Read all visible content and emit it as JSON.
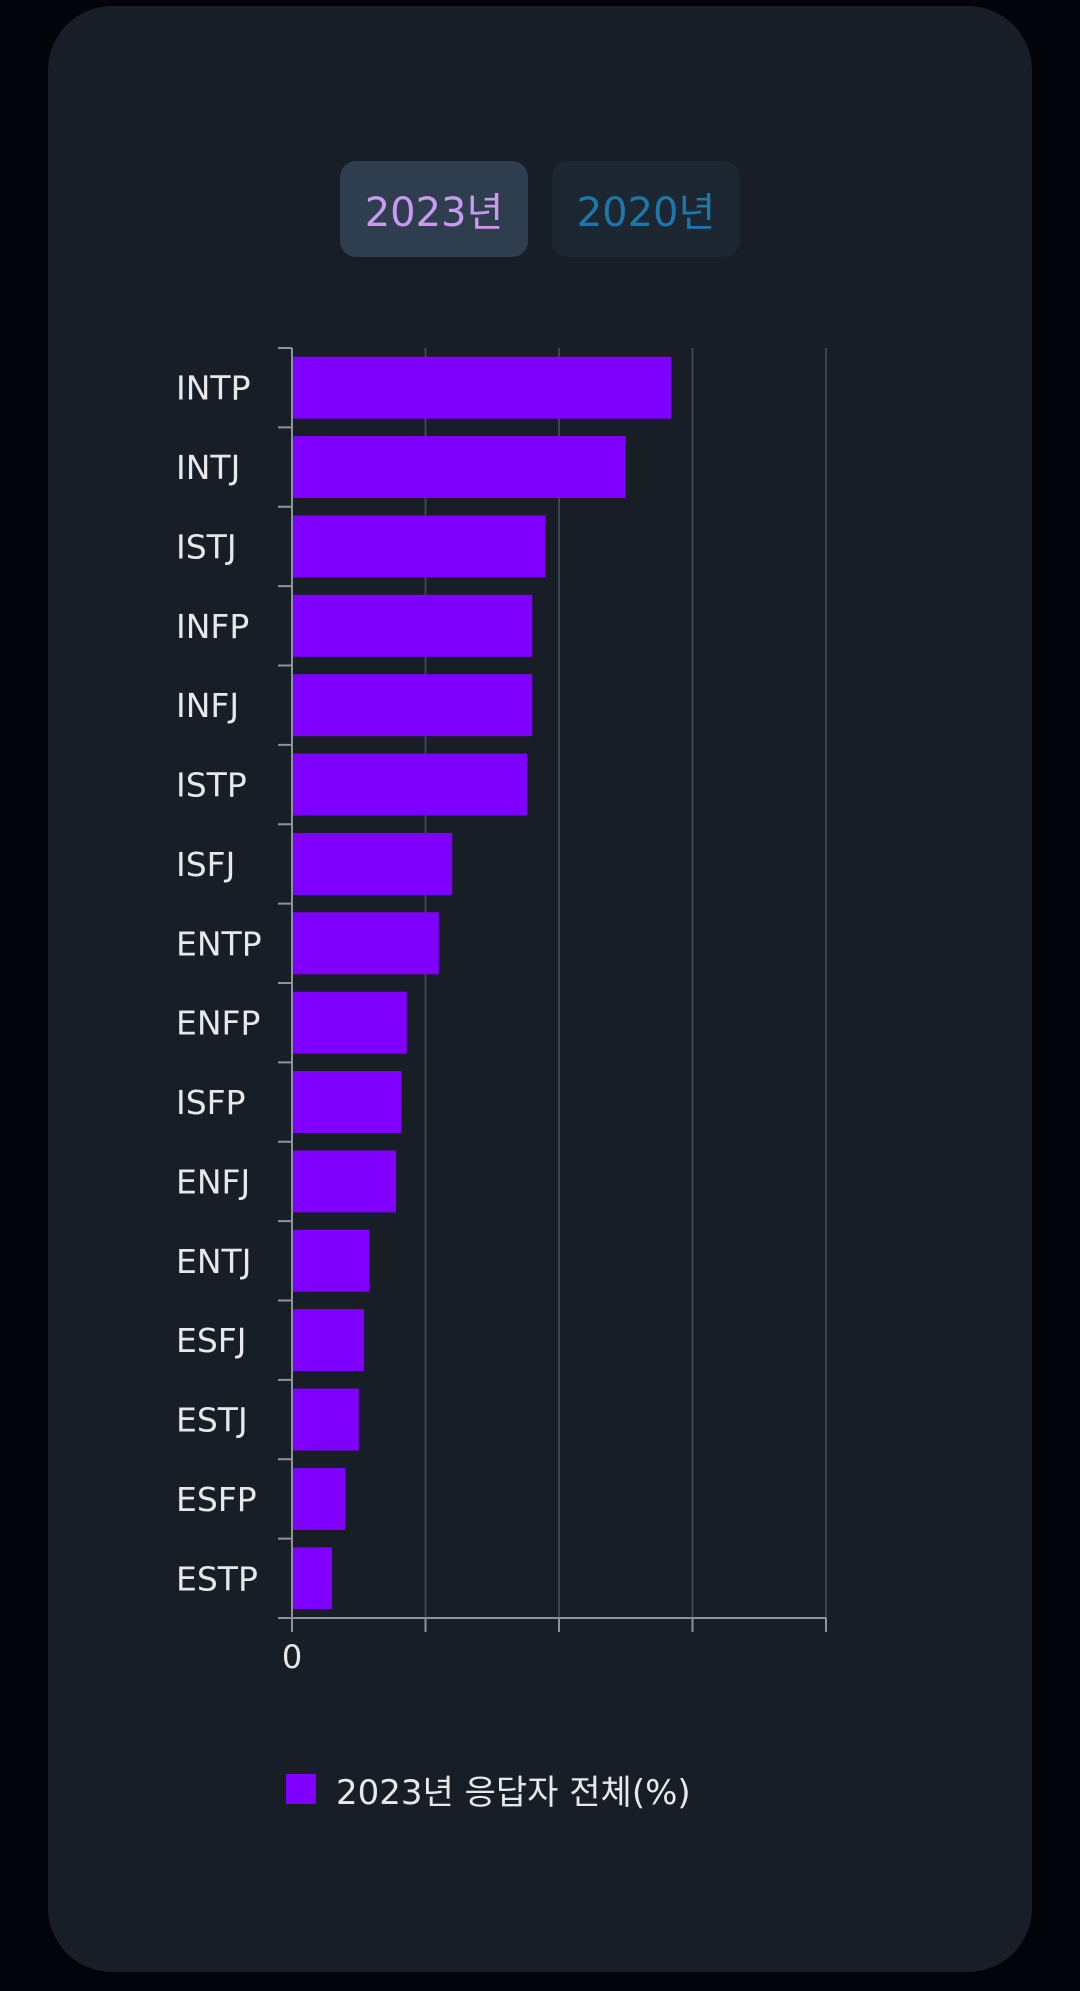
{
  "tabs": [
    {
      "label": "2023년",
      "active": true
    },
    {
      "label": "2020년",
      "active": false
    }
  ],
  "colors": {
    "bar": "#8000ff",
    "grid": "#3b4650",
    "axis": "#8a949c",
    "label": "#e6e8eb"
  },
  "chart_data": {
    "type": "bar",
    "orientation": "horizontal",
    "categories": [
      "INTP",
      "INTJ",
      "ISTJ",
      "INFP",
      "INFJ",
      "ISTP",
      "ISFJ",
      "ENTP",
      "ENFP",
      "ISFP",
      "ENFJ",
      "ENTJ",
      "ESFJ",
      "ESTJ",
      "ESFP",
      "ESTP"
    ],
    "series": [
      {
        "name": "2023년 응답자 전체(%)",
        "values": [
          14.2,
          12.5,
          9.5,
          9.0,
          9.0,
          8.8,
          6.0,
          5.5,
          4.3,
          4.1,
          3.9,
          2.9,
          2.7,
          2.5,
          2.0,
          1.5
        ]
      }
    ],
    "xlim": [
      0,
      20
    ],
    "x_ticks": [
      0,
      5,
      10,
      15,
      20
    ],
    "x_tick_labels": [
      "0",
      "",
      "",
      "",
      ""
    ],
    "grid": true,
    "legend_position": "bottom"
  }
}
